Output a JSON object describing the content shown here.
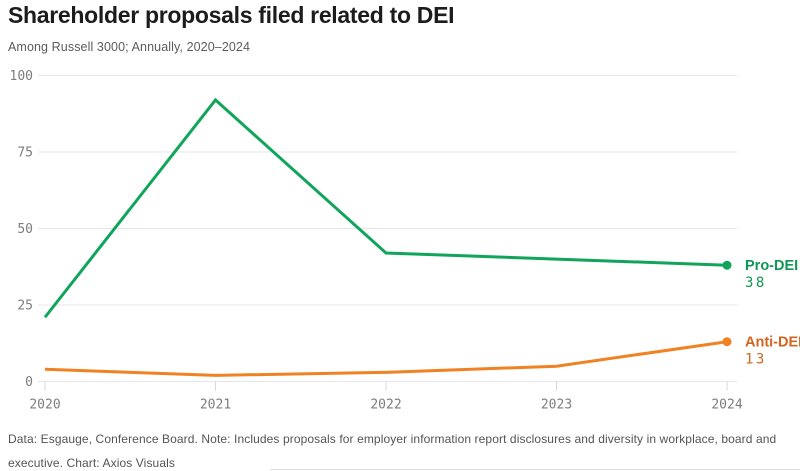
{
  "header": {
    "title": "Shareholder proposals filed related to DEI",
    "subtitle": "Among Russell 3000; Annually, 2020–2024"
  },
  "chart_data": {
    "type": "line",
    "title": "Shareholder proposals filed related to DEI",
    "subtitle": "Among Russell 3000; Annually, 2020–2024",
    "categories": [
      "2020",
      "2021",
      "2022",
      "2023",
      "2024"
    ],
    "series": [
      {
        "name": "Pro-DEI",
        "values": [
          21,
          92,
          42,
          40,
          38
        ],
        "end_label": 38,
        "line_color": "#10a55b",
        "label_color": "#0e9853"
      },
      {
        "name": "Anti-DEI",
        "values": [
          4,
          2,
          3,
          5,
          13
        ],
        "end_label": 13,
        "line_color": "#f08222",
        "label_color": "#d2641f"
      }
    ],
    "xlabel": "",
    "ylabel": "",
    "ylim": [
      0,
      100
    ],
    "yticks": [
      0,
      25,
      50,
      75,
      100
    ],
    "grid": "horizontal",
    "legend_position": "right-end-labels"
  },
  "footer": {
    "note": "Data: Esgauge, Conference Board. Note: Includes proposals for employer information report disclosures and diversity in workplace, board and executive. Chart: Axios Visuals"
  }
}
